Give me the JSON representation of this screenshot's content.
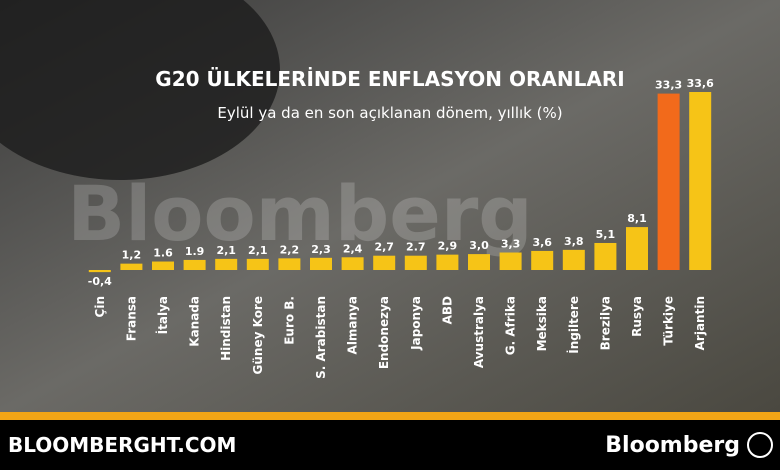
{
  "chart_data": {
    "type": "bar",
    "title": "G20 ÜLKELERİNDE ENFLASYON ORANLARI",
    "subtitle": "Eylül ya da en son açıklanan dönem, yıllık (%)",
    "categories": [
      "Çin",
      "Fransa",
      "İtalya",
      "Kanada",
      "Hindistan",
      "Güney Kore",
      "Euro B.",
      "S. Arabistan",
      "Almanya",
      "Endonezya",
      "Japonya",
      "ABD",
      "Avustralya",
      "G. Afrika",
      "Meksika",
      "İngiltere",
      "Brezilya",
      "Rusya",
      "Türkiye",
      "Arjantin"
    ],
    "values": [
      -0.4,
      1.2,
      1.6,
      1.9,
      2.1,
      2.1,
      2.2,
      2.3,
      2.4,
      2.7,
      2.7,
      2.9,
      3.0,
      3.3,
      3.6,
      3.8,
      5.1,
      8.1,
      33.3,
      33.6
    ],
    "value_labels": [
      "-0,4",
      "1,2",
      "1.6",
      "1.9",
      "2,1",
      "2,1",
      "2,2",
      "2,3",
      "2,4",
      "2,7",
      "2.7",
      "2,9",
      "3,0",
      "3,3",
      "3,6",
      "3,8",
      "5,1",
      "8,1",
      "33,3",
      "33,6"
    ],
    "colors": [
      "#f6c417",
      "#f6c417",
      "#f6c417",
      "#f6c417",
      "#f6c417",
      "#f6c417",
      "#f6c417",
      "#f6c417",
      "#f6c417",
      "#f6c417",
      "#f6c417",
      "#f6c417",
      "#f6c417",
      "#f6c417",
      "#f6c417",
      "#f6c417",
      "#f6c417",
      "#f6c417",
      "#f26a1b",
      "#f6c417"
    ]
  },
  "watermark": "Bloomberg",
  "footer": {
    "site": "BLOOMBERGHT.COM",
    "brand": "Bloomberg"
  }
}
